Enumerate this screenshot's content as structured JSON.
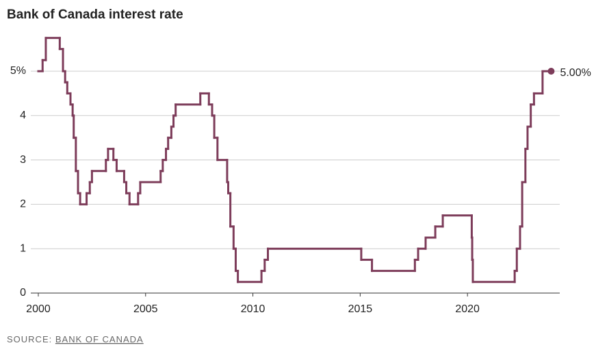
{
  "chart_data": {
    "type": "step",
    "title": "Bank of Canada interest rate",
    "source_prefix": "SOURCE:",
    "source": "BANK OF CANADA",
    "end_label": "5.00%",
    "xlim": [
      1999.65,
      2024.3
    ],
    "xticks": [
      2000,
      2005,
      2010,
      2015,
      2020
    ],
    "ylim": [
      0,
      6
    ],
    "yticks": [
      0,
      1,
      2,
      3,
      4,
      {
        "value": 5,
        "label": "5%"
      }
    ],
    "grid": true,
    "series": [
      {
        "name": "Bank of Canada interest rate",
        "color": "#7d3c5a",
        "x": [
          2000.0,
          2000.2,
          2000.35,
          2001.0,
          2001.15,
          2001.25,
          2001.35,
          2001.5,
          2001.6,
          2001.65,
          2001.75,
          2001.85,
          2001.95,
          2002.25,
          2002.4,
          2002.5,
          2003.15,
          2003.25,
          2003.5,
          2003.65,
          2004.0,
          2004.1,
          2004.25,
          2004.65,
          2004.75,
          2005.7,
          2005.8,
          2005.95,
          2006.05,
          2006.2,
          2006.3,
          2006.4,
          2007.55,
          2007.95,
          2008.1,
          2008.2,
          2008.35,
          2008.8,
          2008.85,
          2008.95,
          2009.1,
          2009.2,
          2009.3,
          2010.4,
          2010.55,
          2010.7,
          2015.05,
          2015.55,
          2017.55,
          2017.7,
          2018.05,
          2018.5,
          2018.85,
          2020.2,
          2020.22,
          2020.25,
          2022.2,
          2022.3,
          2022.45,
          2022.55,
          2022.7,
          2022.8,
          2022.95,
          2023.1,
          2023.5,
          2023.9
        ],
        "values": [
          5.0,
          5.25,
          5.75,
          5.5,
          5.0,
          4.75,
          4.5,
          4.25,
          4.0,
          3.5,
          2.75,
          2.25,
          2.0,
          2.25,
          2.5,
          2.75,
          3.0,
          3.25,
          3.0,
          2.75,
          2.5,
          2.25,
          2.0,
          2.25,
          2.5,
          2.75,
          3.0,
          3.25,
          3.5,
          3.75,
          4.0,
          4.25,
          4.5,
          4.25,
          4.0,
          3.5,
          3.0,
          2.5,
          2.25,
          1.5,
          1.0,
          0.5,
          0.25,
          0.5,
          0.75,
          1.0,
          0.75,
          0.5,
          0.75,
          1.0,
          1.25,
          1.5,
          1.75,
          1.25,
          0.75,
          0.25,
          0.5,
          1.0,
          1.5,
          2.5,
          3.25,
          3.75,
          4.25,
          4.5,
          5.0,
          5.0
        ]
      }
    ]
  }
}
